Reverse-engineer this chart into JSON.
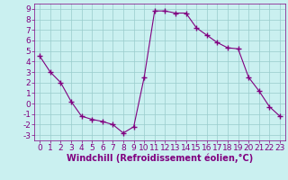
{
  "x": [
    0,
    1,
    2,
    3,
    4,
    5,
    6,
    7,
    8,
    9,
    10,
    11,
    12,
    13,
    14,
    15,
    16,
    17,
    18,
    19,
    20,
    21,
    22,
    23
  ],
  "y": [
    4.5,
    3.0,
    2.0,
    0.2,
    -1.2,
    -1.5,
    -1.7,
    -2.0,
    -2.8,
    -2.2,
    2.5,
    8.8,
    8.8,
    8.6,
    8.6,
    7.2,
    6.5,
    5.8,
    5.3,
    5.2,
    2.5,
    1.2,
    -0.3,
    -1.2
  ],
  "line_color": "#800080",
  "marker": "+",
  "marker_size": 4,
  "marker_lw": 1.0,
  "bg_color": "#caf0f0",
  "grid_color": "#99cccc",
  "xlabel": "Windchill (Refroidissement éolien,°C)",
  "xlabel_color": "#800080",
  "tick_color": "#800080",
  "ylim": [
    -3.5,
    9.5
  ],
  "xlim": [
    -0.5,
    23.5
  ],
  "yticks": [
    -3,
    -2,
    -1,
    0,
    1,
    2,
    3,
    4,
    5,
    6,
    7,
    8,
    9
  ],
  "xticks": [
    0,
    1,
    2,
    3,
    4,
    5,
    6,
    7,
    8,
    9,
    10,
    11,
    12,
    13,
    14,
    15,
    16,
    17,
    18,
    19,
    20,
    21,
    22,
    23
  ],
  "font_size": 6.5,
  "label_font_size": 7
}
